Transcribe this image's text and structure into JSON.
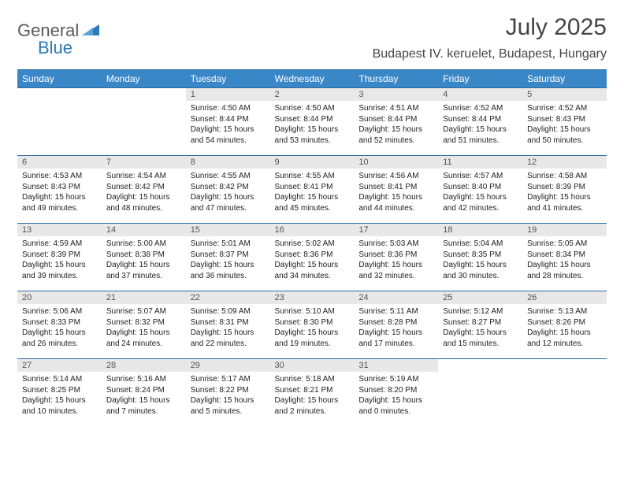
{
  "brand": {
    "name_part1": "General",
    "name_part2": "Blue",
    "color_general": "#5a5a5a",
    "color_blue": "#2a7ab8",
    "icon_fill": "#2a7ab8"
  },
  "title": "July 2025",
  "location": "Budapest IV. keruelet, Budapest, Hungary",
  "colors": {
    "header_bg": "#3a87c8",
    "header_text": "#ffffff",
    "row_border": "#2a6aa0",
    "daynum_bg": "#e8e8e8",
    "daynum_text": "#555555",
    "body_text": "#222222",
    "title_text": "#454545"
  },
  "weekdays": [
    "Sunday",
    "Monday",
    "Tuesday",
    "Wednesday",
    "Thursday",
    "Friday",
    "Saturday"
  ],
  "first_weekday_index": 2,
  "days": [
    {
      "n": 1,
      "sunrise": "4:50 AM",
      "sunset": "8:44 PM",
      "daylight": "15 hours and 54 minutes."
    },
    {
      "n": 2,
      "sunrise": "4:50 AM",
      "sunset": "8:44 PM",
      "daylight": "15 hours and 53 minutes."
    },
    {
      "n": 3,
      "sunrise": "4:51 AM",
      "sunset": "8:44 PM",
      "daylight": "15 hours and 52 minutes."
    },
    {
      "n": 4,
      "sunrise": "4:52 AM",
      "sunset": "8:44 PM",
      "daylight": "15 hours and 51 minutes."
    },
    {
      "n": 5,
      "sunrise": "4:52 AM",
      "sunset": "8:43 PM",
      "daylight": "15 hours and 50 minutes."
    },
    {
      "n": 6,
      "sunrise": "4:53 AM",
      "sunset": "8:43 PM",
      "daylight": "15 hours and 49 minutes."
    },
    {
      "n": 7,
      "sunrise": "4:54 AM",
      "sunset": "8:42 PM",
      "daylight": "15 hours and 48 minutes."
    },
    {
      "n": 8,
      "sunrise": "4:55 AM",
      "sunset": "8:42 PM",
      "daylight": "15 hours and 47 minutes."
    },
    {
      "n": 9,
      "sunrise": "4:55 AM",
      "sunset": "8:41 PM",
      "daylight": "15 hours and 45 minutes."
    },
    {
      "n": 10,
      "sunrise": "4:56 AM",
      "sunset": "8:41 PM",
      "daylight": "15 hours and 44 minutes."
    },
    {
      "n": 11,
      "sunrise": "4:57 AM",
      "sunset": "8:40 PM",
      "daylight": "15 hours and 42 minutes."
    },
    {
      "n": 12,
      "sunrise": "4:58 AM",
      "sunset": "8:39 PM",
      "daylight": "15 hours and 41 minutes."
    },
    {
      "n": 13,
      "sunrise": "4:59 AM",
      "sunset": "8:39 PM",
      "daylight": "15 hours and 39 minutes."
    },
    {
      "n": 14,
      "sunrise": "5:00 AM",
      "sunset": "8:38 PM",
      "daylight": "15 hours and 37 minutes."
    },
    {
      "n": 15,
      "sunrise": "5:01 AM",
      "sunset": "8:37 PM",
      "daylight": "15 hours and 36 minutes."
    },
    {
      "n": 16,
      "sunrise": "5:02 AM",
      "sunset": "8:36 PM",
      "daylight": "15 hours and 34 minutes."
    },
    {
      "n": 17,
      "sunrise": "5:03 AM",
      "sunset": "8:36 PM",
      "daylight": "15 hours and 32 minutes."
    },
    {
      "n": 18,
      "sunrise": "5:04 AM",
      "sunset": "8:35 PM",
      "daylight": "15 hours and 30 minutes."
    },
    {
      "n": 19,
      "sunrise": "5:05 AM",
      "sunset": "8:34 PM",
      "daylight": "15 hours and 28 minutes."
    },
    {
      "n": 20,
      "sunrise": "5:06 AM",
      "sunset": "8:33 PM",
      "daylight": "15 hours and 26 minutes."
    },
    {
      "n": 21,
      "sunrise": "5:07 AM",
      "sunset": "8:32 PM",
      "daylight": "15 hours and 24 minutes."
    },
    {
      "n": 22,
      "sunrise": "5:09 AM",
      "sunset": "8:31 PM",
      "daylight": "15 hours and 22 minutes."
    },
    {
      "n": 23,
      "sunrise": "5:10 AM",
      "sunset": "8:30 PM",
      "daylight": "15 hours and 19 minutes."
    },
    {
      "n": 24,
      "sunrise": "5:11 AM",
      "sunset": "8:28 PM",
      "daylight": "15 hours and 17 minutes."
    },
    {
      "n": 25,
      "sunrise": "5:12 AM",
      "sunset": "8:27 PM",
      "daylight": "15 hours and 15 minutes."
    },
    {
      "n": 26,
      "sunrise": "5:13 AM",
      "sunset": "8:26 PM",
      "daylight": "15 hours and 12 minutes."
    },
    {
      "n": 27,
      "sunrise": "5:14 AM",
      "sunset": "8:25 PM",
      "daylight": "15 hours and 10 minutes."
    },
    {
      "n": 28,
      "sunrise": "5:16 AM",
      "sunset": "8:24 PM",
      "daylight": "15 hours and 7 minutes."
    },
    {
      "n": 29,
      "sunrise": "5:17 AM",
      "sunset": "8:22 PM",
      "daylight": "15 hours and 5 minutes."
    },
    {
      "n": 30,
      "sunrise": "5:18 AM",
      "sunset": "8:21 PM",
      "daylight": "15 hours and 2 minutes."
    },
    {
      "n": 31,
      "sunrise": "5:19 AM",
      "sunset": "8:20 PM",
      "daylight": "15 hours and 0 minutes."
    }
  ],
  "labels": {
    "sunrise": "Sunrise:",
    "sunset": "Sunset:",
    "daylight": "Daylight:"
  }
}
